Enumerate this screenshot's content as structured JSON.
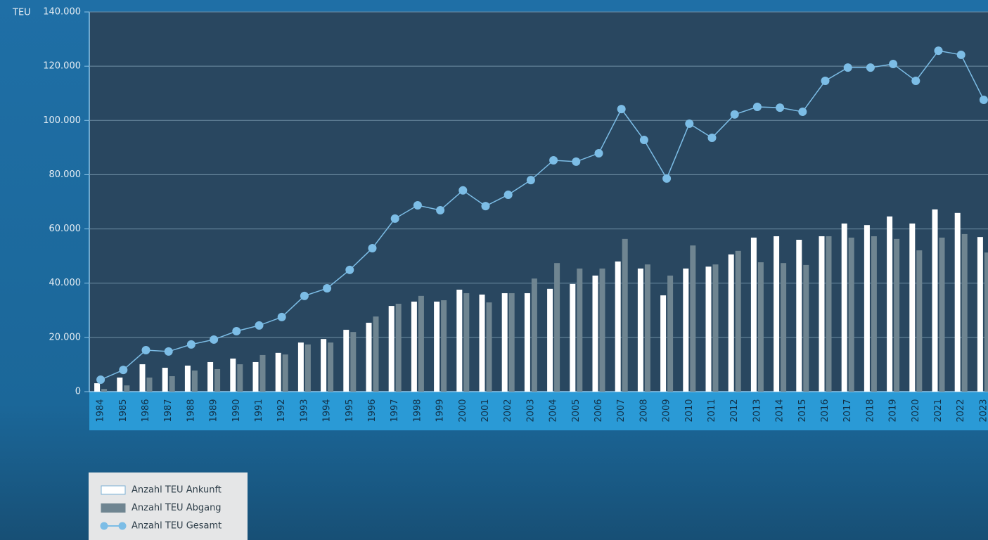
{
  "chart_data": {
    "type": "bar-line",
    "y_axis_label": "TEU",
    "categories": [
      "1984",
      "1985",
      "1986",
      "1987",
      "1988",
      "1989",
      "1990",
      "1991",
      "1992",
      "1993",
      "1994",
      "1995",
      "1996",
      "1997",
      "1998",
      "1999",
      "2000",
      "2001",
      "2002",
      "2003",
      "2004",
      "2005",
      "2006",
      "2007",
      "2008",
      "2009",
      "2010",
      "2011",
      "2012",
      "2013",
      "2014",
      "2015",
      "2016",
      "2017",
      "2018",
      "2019",
      "2020",
      "2021",
      "2022",
      "2023"
    ],
    "series": [
      {
        "name": "Anzahl TEU Ankunft",
        "type": "bar",
        "color": "#ffffff",
        "values": [
          3100,
          5200,
          10100,
          8800,
          9600,
          10900,
          12200,
          10900,
          14300,
          18100,
          19400,
          22800,
          25400,
          31600,
          33200,
          33200,
          37600,
          35800,
          36300,
          36300,
          37900,
          39700,
          42800,
          48000,
          45400,
          35500,
          45400,
          46100,
          50600,
          56800,
          57300,
          56000,
          57300,
          62000,
          61400,
          64600,
          62000,
          67200,
          65900,
          57000
        ]
      },
      {
        "name": "Anzahl TEU Abgang",
        "type": "bar",
        "color": "#6f8591",
        "values": [
          1000,
          2300,
          5200,
          5700,
          7800,
          8300,
          10100,
          13500,
          13700,
          17400,
          18100,
          22000,
          27700,
          32400,
          35300,
          33700,
          36300,
          32900,
          36300,
          41700,
          47400,
          45400,
          45400,
          56300,
          46900,
          42800,
          53900,
          46900,
          51900,
          47700,
          47400,
          46700,
          57300,
          56800,
          57300,
          56300,
          52100,
          56800,
          58100,
          51300
        ]
      },
      {
        "name": "Anzahl TEU Gesamt",
        "type": "line",
        "color": "#7cbde6",
        "values": [
          4400,
          8000,
          15300,
          14800,
          17400,
          19200,
          22300,
          24400,
          27500,
          35300,
          38100,
          44900,
          52900,
          63800,
          68700,
          66900,
          74200,
          68400,
          72600,
          78000,
          85300,
          84800,
          87900,
          104200,
          92800,
          78600,
          98800,
          93600,
          102200,
          105000,
          104700,
          103200,
          114600,
          119500,
          119500,
          120800,
          114600,
          125700,
          124200,
          107600
        ]
      }
    ],
    "ylim": [
      0,
      140000
    ],
    "yticks": [
      0,
      {
        "value": 20000,
        "label": "20.000"
      },
      {
        "value": 40000,
        "label": "40.000"
      },
      {
        "value": 60000,
        "label": "60.000"
      },
      {
        "value": 80000,
        "label": "80.000"
      },
      {
        "value": 100000,
        "label": "100.000"
      },
      {
        "value": 120000,
        "label": "120.000"
      },
      {
        "value": 140000,
        "label": "140.000"
      }
    ],
    "grid": true,
    "legend": "bottom-left"
  }
}
